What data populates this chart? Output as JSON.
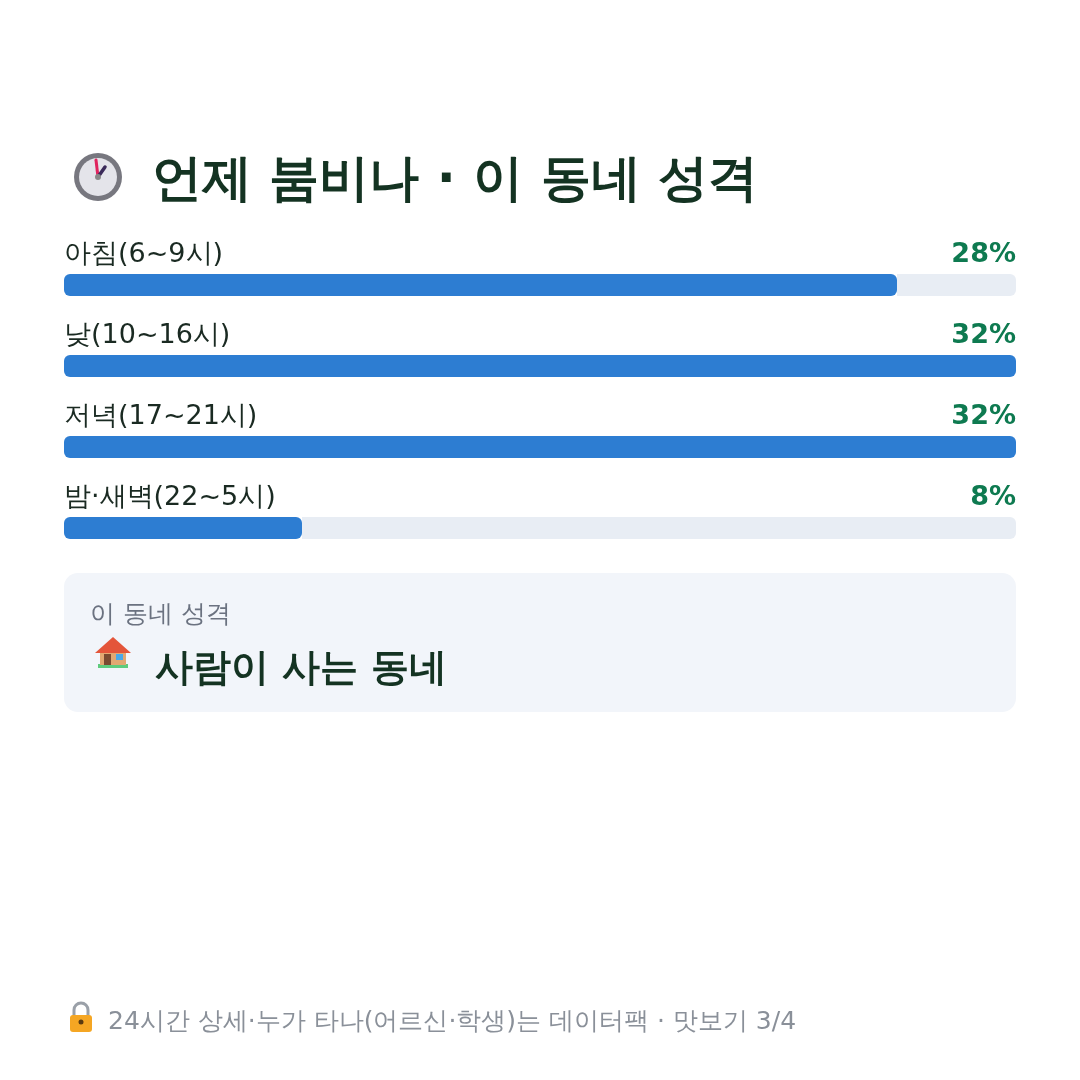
{
  "chart_data": {
    "type": "bar",
    "orientation": "horizontal",
    "title": "언제 붐비나 · 이 동네 성격",
    "categories": [
      "아침(6~9시)",
      "낮(10~16시)",
      "저녁(17~21시)",
      "밤·새벽(22~5시)"
    ],
    "values": [
      28,
      32,
      32,
      8
    ],
    "value_labels": [
      "28%",
      "32%",
      "32%",
      "8%"
    ],
    "color": "#2d7dd2",
    "annotations": [
      "이 동네 성격",
      "사람이 사는 동네",
      "24시간 상세·누가 타나(어르신·학생)는 데이터팩 · 맛보기 3/4"
    ]
  }
}
